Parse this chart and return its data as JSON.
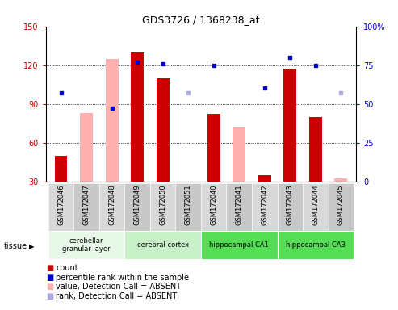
{
  "title": "GDS3726 / 1368238_at",
  "samples": [
    "GSM172046",
    "GSM172047",
    "GSM172048",
    "GSM172049",
    "GSM172050",
    "GSM172051",
    "GSM172040",
    "GSM172041",
    "GSM172042",
    "GSM172043",
    "GSM172044",
    "GSM172045"
  ],
  "count_values": [
    50,
    null,
    null,
    130,
    110,
    null,
    82,
    null,
    35,
    117,
    80,
    null
  ],
  "count_absent_values": [
    null,
    83,
    125,
    null,
    null,
    null,
    null,
    72,
    null,
    null,
    null,
    32
  ],
  "percentile_rank": [
    57,
    null,
    47,
    77,
    76,
    null,
    75,
    null,
    60,
    80,
    75,
    null
  ],
  "percentile_rank_absent": [
    null,
    null,
    null,
    null,
    null,
    57,
    null,
    null,
    null,
    null,
    null,
    57
  ],
  "ylim_left": [
    30,
    150
  ],
  "ylim_right": [
    0,
    100
  ],
  "left_ticks": [
    30,
    60,
    90,
    120,
    150
  ],
  "right_ticks": [
    0,
    25,
    50,
    75,
    100
  ],
  "tissue_groups": [
    {
      "label": "cerebellar\ngranular layer",
      "start": 0,
      "end": 3,
      "color": "#e8f8e8"
    },
    {
      "label": "cerebral cortex",
      "start": 3,
      "end": 6,
      "color": "#c8f0c8"
    },
    {
      "label": "hippocampal CA1",
      "start": 6,
      "end": 9,
      "color": "#55dd55"
    },
    {
      "label": "hippocampal CA3",
      "start": 9,
      "end": 12,
      "color": "#55dd55"
    }
  ],
  "bar_width": 0.5,
  "count_color": "#cc0000",
  "count_absent_color": "#ffb0b0",
  "rank_color": "#0000cc",
  "rank_absent_color": "#aaaadd",
  "plot_bg": "#ffffff",
  "legend_items": [
    {
      "label": "count",
      "color": "#cc0000"
    },
    {
      "label": "percentile rank within the sample",
      "color": "#0000cc"
    },
    {
      "label": "value, Detection Call = ABSENT",
      "color": "#ffb0b0"
    },
    {
      "label": "rank, Detection Call = ABSENT",
      "color": "#aaaadd"
    }
  ],
  "grid_lines": [
    60,
    90,
    120
  ]
}
